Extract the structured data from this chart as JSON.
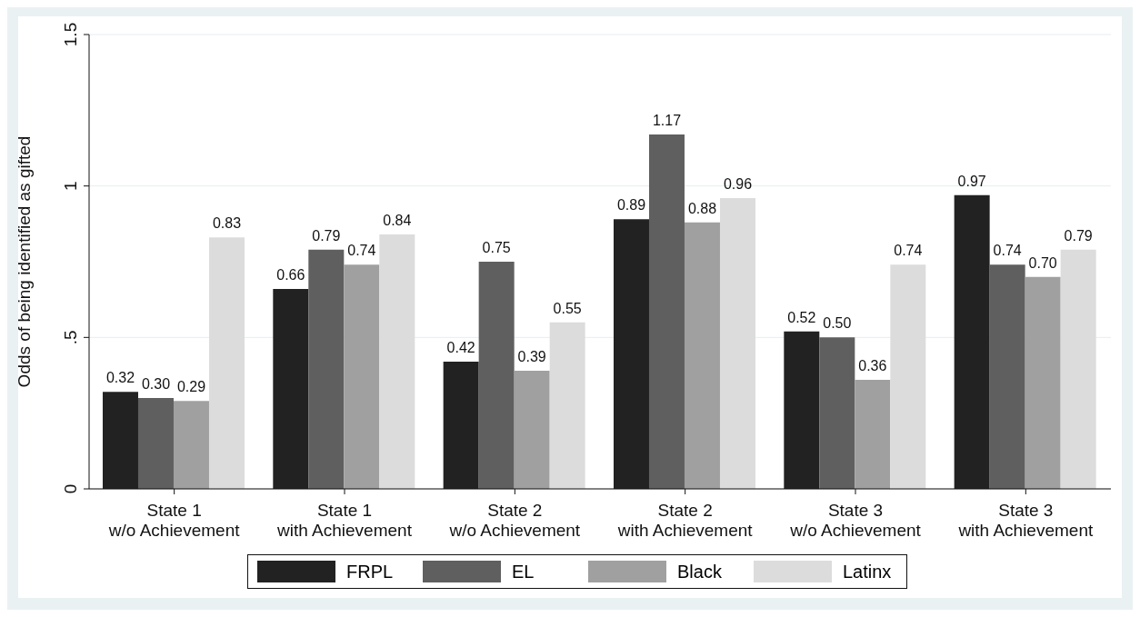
{
  "chart_data": {
    "type": "bar",
    "ylabel": "Odds of being identified as gifted",
    "categories": [
      "State 1\nw/o Achievement",
      "State 1\nwith Achievement",
      "State 2\nw/o Achievement",
      "State 2\nwith Achievement",
      "State 3\nw/o Achievement",
      "State 3\nwith Achievement"
    ],
    "series": [
      {
        "name": "FRPL",
        "color": "#222222",
        "values": [
          0.32,
          0.66,
          0.42,
          0.89,
          0.52,
          0.97
        ],
        "value_labels": [
          "0.32",
          "0.66",
          "0.42",
          "0.89",
          "0.52",
          "0.97"
        ]
      },
      {
        "name": "EL",
        "color": "#5f5f5f",
        "values": [
          0.3,
          0.79,
          0.75,
          1.17,
          0.5,
          0.74
        ],
        "value_labels": [
          "0.30",
          "0.79",
          "0.75",
          "1.17",
          "0.50",
          "0.74"
        ]
      },
      {
        "name": "Black",
        "color": "#a0a0a0",
        "values": [
          0.29,
          0.74,
          0.39,
          0.88,
          0.36,
          0.7
        ],
        "value_labels": [
          "0.29",
          "0.74",
          "0.39",
          "0.88",
          "0.36",
          "0.70"
        ]
      },
      {
        "name": "Latinx",
        "color": "#dcdcdc",
        "values": [
          0.83,
          0.84,
          0.55,
          0.96,
          0.74,
          0.79
        ],
        "value_labels": [
          "0.83",
          "0.84",
          "0.55",
          "0.96",
          "0.74",
          "0.79"
        ]
      }
    ],
    "ylim": [
      0,
      1.5
    ],
    "yticks": [
      0,
      {
        "value": 0.5,
        "label": ".5"
      },
      1,
      1.5
    ],
    "grid": "y",
    "legend": "bottom"
  }
}
